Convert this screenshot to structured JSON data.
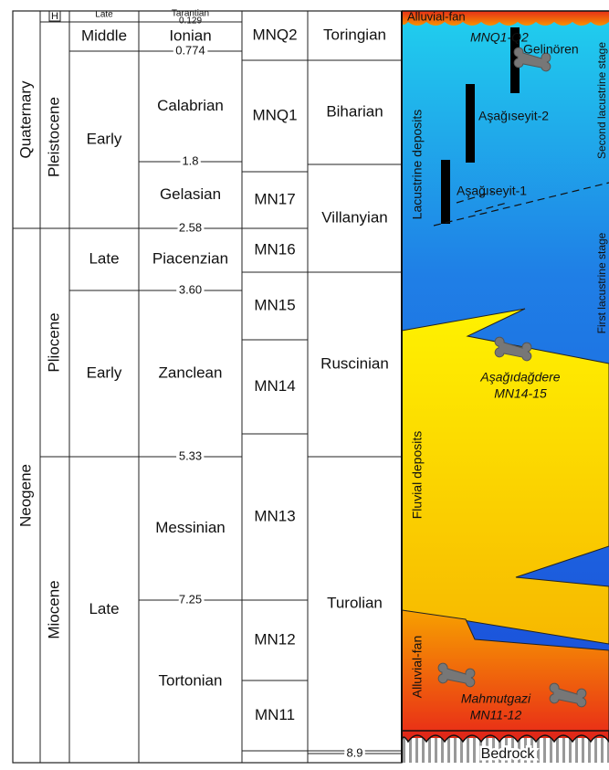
{
  "columns": {
    "period": [
      "Quaternary",
      "Neogene"
    ],
    "epoch": [
      "H",
      "Pleistocene",
      "Pliocene",
      "Miocene"
    ],
    "subepoch": [
      "Late",
      "Middle",
      "Early",
      "Late",
      "Early",
      "Late"
    ],
    "stage": [
      "Tarantian",
      "Ionian",
      "Calabrian",
      "Gelasian",
      "Piacenzian",
      "Zanclean",
      "Messinian",
      "Tortonian"
    ],
    "zone": [
      "MNQ2",
      "MNQ1",
      "MN17",
      "MN16",
      "MN15",
      "MN14",
      "MN13",
      "MN12",
      "MN11"
    ],
    "mammal_age": [
      "Toringian",
      "Biharian",
      "Villanyian",
      "Ruscinian",
      "Turolian"
    ]
  },
  "ages": [
    "0.129",
    "0.774",
    "1.8",
    "2.58",
    "3.60",
    "5.33",
    "7.25",
    "8.9"
  ],
  "panel": {
    "top_fan": "Alluvial-fan",
    "site_zone_top": "MNQ1-Q2",
    "gelinoren": "Gelinören",
    "asagiseyit2": "Aşağıseyit-2",
    "asagiseyit1": "Aşağıseyit-1",
    "second_stage": "Second lacustrine stage",
    "first_stage": "First lacustrine stage",
    "lacustrine": "Lacustrine deposits",
    "asagidagdere": "Aşağıdağdere",
    "asagidagdere_zone": "MN14-15",
    "fluvial": "Fluvial deposits",
    "bottom_fan": "Alluvial-fan",
    "mahmutgazi": "Mahmutgazi",
    "mahmutgazi_zone": "MN11-12",
    "bedrock": "Bedrock"
  }
}
